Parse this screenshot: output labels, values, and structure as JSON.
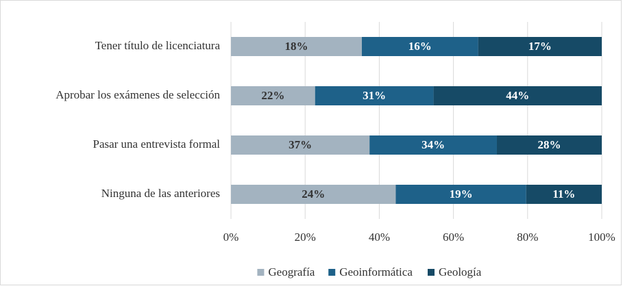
{
  "chart_data": {
    "type": "bar",
    "orientation": "horizontal",
    "stacked": "percent",
    "categories": [
      "Tener título de licenciatura",
      "Aprobar los exámenes de selección",
      "Pasar una entrevista formal",
      "Ninguna de las anteriores"
    ],
    "series": [
      {
        "name": "Geografía",
        "color": "#a3b3c0",
        "label_color": "#333333",
        "values": [
          18,
          22,
          37,
          24
        ],
        "value_labels": [
          "18%",
          "22%",
          "37%",
          "24%"
        ]
      },
      {
        "name": "Geoinformática",
        "color": "#1e6189",
        "label_color": "#ffffff",
        "values": [
          16,
          31,
          34,
          19
        ],
        "value_labels": [
          "16%",
          "31%",
          "34%",
          "19%"
        ]
      },
      {
        "name": "Geología",
        "color": "#164a66",
        "label_color": "#ffffff",
        "values": [
          17,
          44,
          28,
          11
        ],
        "value_labels": [
          "17%",
          "44%",
          "28%",
          "11%"
        ]
      }
    ],
    "xlim": [
      0,
      100
    ],
    "xticks": [
      {
        "value": 0,
        "label": "0%"
      },
      {
        "value": 20,
        "label": "20%"
      },
      {
        "value": 40,
        "label": "40%"
      },
      {
        "value": 60,
        "label": "60%"
      },
      {
        "value": 80,
        "label": "80%"
      },
      {
        "value": 100,
        "label": "100%"
      }
    ],
    "grid": true,
    "legend": "bottom"
  }
}
